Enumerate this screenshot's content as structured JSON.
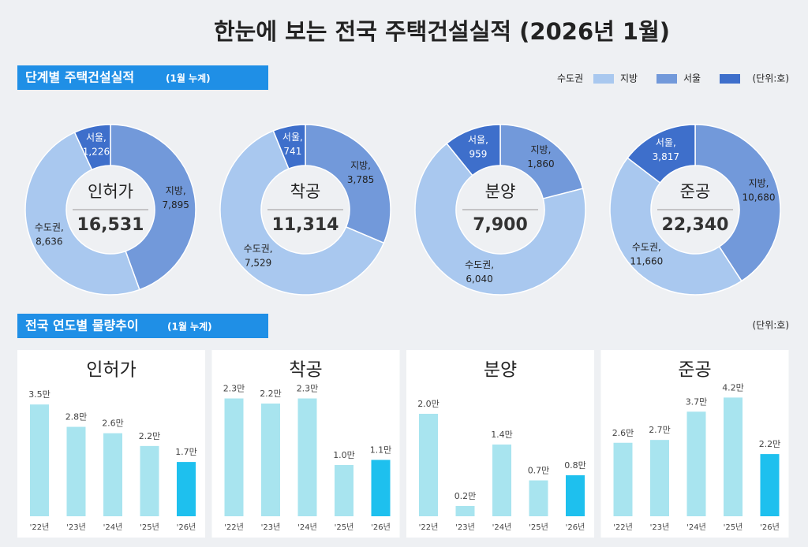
{
  "title": "한눈에 보는 전국 주택건설실적 (2026년 1월)",
  "section1": {
    "title": "단계별 주택건설실적",
    "note": "(1월 누계)",
    "unit": "(단위:호)",
    "legend": [
      {
        "name": "수도권",
        "color": "#a9c8ef"
      },
      {
        "name": "지방",
        "color": "#7299da"
      },
      {
        "name": "서울",
        "color": "#3e6fcb"
      }
    ]
  },
  "section2": {
    "title": "전국 연도별 물량추이",
    "note": "(1월 누계)",
    "unit": "(단위:호)"
  },
  "chart_data": [
    {
      "type": "pie",
      "title": "인허가",
      "total": {
        "value": 16531,
        "label": "16,531"
      },
      "categories": [
        "지방,",
        "수도권,",
        "서울,"
      ],
      "values": [
        7895,
        8636,
        1226
      ],
      "value_labels": [
        "7,895",
        "8,636",
        "1,226"
      ],
      "colors": [
        "#7299da",
        "#a9c8ef",
        "#3e6fcb"
      ]
    },
    {
      "type": "pie",
      "title": "착공",
      "total": {
        "value": 11314,
        "label": "11,314"
      },
      "categories": [
        "지방,",
        "수도권,",
        "서울,"
      ],
      "values": [
        3785,
        7529,
        741
      ],
      "value_labels": [
        "3,785",
        "7,529",
        "741"
      ],
      "colors": [
        "#7299da",
        "#a9c8ef",
        "#3e6fcb"
      ]
    },
    {
      "type": "pie",
      "title": "분양",
      "total": {
        "value": 7900,
        "label": "7,900"
      },
      "categories": [
        "지방,",
        "수도권,",
        "서울,"
      ],
      "values": [
        1860,
        6040,
        959
      ],
      "value_labels": [
        "1,860",
        "6,040",
        "959"
      ],
      "colors": [
        "#7299da",
        "#a9c8ef",
        "#3e6fcb"
      ]
    },
    {
      "type": "pie",
      "title": "준공",
      "total": {
        "value": 22340,
        "label": "22,340"
      },
      "categories": [
        "지방,",
        "수도권,",
        "서울,"
      ],
      "values": [
        10680,
        11660,
        3817
      ],
      "value_labels": [
        "10,680",
        "11,660",
        "3,817"
      ],
      "colors": [
        "#7299da",
        "#a9c8ef",
        "#3e6fcb"
      ]
    },
    {
      "type": "bar",
      "title": "인허가",
      "categories": [
        "'22년",
        "'23년",
        "'24년",
        "'25년",
        "'26년"
      ],
      "values": [
        3.5,
        2.8,
        2.6,
        2.2,
        1.7
      ],
      "value_labels": [
        "3.5만",
        "2.8만",
        "2.6만",
        "2.2만",
        "1.7만"
      ],
      "colors": [
        "#a8e4ef",
        "#a8e4ef",
        "#a8e4ef",
        "#a8e4ef",
        "#1ec0ee"
      ],
      "ylim": [
        0,
        3.85
      ]
    },
    {
      "type": "bar",
      "title": "착공",
      "categories": [
        "'22년",
        "'23년",
        "'24년",
        "'25년",
        "'26년"
      ],
      "values": [
        2.3,
        2.2,
        2.3,
        1.0,
        1.1
      ],
      "value_labels": [
        "2.3만",
        "2.2만",
        "2.3만",
        "1.0만",
        "1.1만"
      ],
      "colors": [
        "#a8e4ef",
        "#a8e4ef",
        "#a8e4ef",
        "#a8e4ef",
        "#1ec0ee"
      ],
      "ylim": [
        0,
        2.4
      ]
    },
    {
      "type": "bar",
      "title": "분양",
      "categories": [
        "'22년",
        "'23년",
        "'24년",
        "'25년",
        "'26년"
      ],
      "values": [
        2.0,
        0.2,
        1.4,
        0.7,
        0.8
      ],
      "value_labels": [
        "2.0만",
        "0.2만",
        "1.4만",
        "0.7만",
        "0.8만"
      ],
      "colors": [
        "#a8e4ef",
        "#a8e4ef",
        "#a8e4ef",
        "#a8e4ef",
        "#1ec0ee"
      ],
      "ylim": [
        0,
        2.4
      ]
    },
    {
      "type": "bar",
      "title": "준공",
      "categories": [
        "'22년",
        "'23년",
        "'24년",
        "'25년",
        "'26년"
      ],
      "values": [
        2.6,
        2.7,
        3.7,
        4.2,
        2.2
      ],
      "value_labels": [
        "2.6만",
        "2.7만",
        "3.7만",
        "4.2만",
        "2.2만"
      ],
      "colors": [
        "#a8e4ef",
        "#a8e4ef",
        "#a8e4ef",
        "#a8e4ef",
        "#1ec0ee"
      ],
      "ylim": [
        0,
        4.35
      ]
    }
  ]
}
